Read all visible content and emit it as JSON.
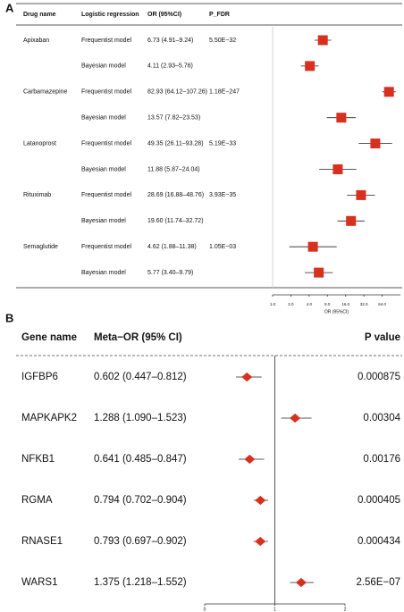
{
  "chart_data": [
    {
      "type": "forest",
      "panel": "A",
      "marker": "square",
      "color": "#d7301f",
      "columns": [
        "Drug name",
        "Logistic regression",
        "OR (95%CI)",
        "P_FDR"
      ],
      "categories": [
        "Apixaban",
        null,
        "Carbamazepine",
        null,
        "Latanoprost",
        null,
        "Rituximab",
        null,
        "Semaglutide",
        null
      ],
      "model": [
        "Frequentist model",
        "Bayesian model",
        "Frequentist model",
        "Bayesian model",
        "Frequentist model",
        "Bayesian model",
        "Frequentist model",
        "Bayesian model",
        "Frequentist model",
        "Bayesian model"
      ],
      "values": [
        6.73,
        4.11,
        82.93,
        13.57,
        49.35,
        11.88,
        28.69,
        19.6,
        4.62,
        5.77
      ],
      "lower": [
        4.91,
        2.93,
        64.12,
        7.82,
        26.11,
        5.87,
        16.88,
        11.74,
        1.88,
        3.4
      ],
      "upper": [
        9.24,
        5.76,
        107.26,
        23.53,
        93.28,
        24.04,
        48.76,
        32.72,
        11.38,
        9.79
      ],
      "value_labels": [
        "6.73 (4.91–9.24)",
        "4.11 (2.93–5.76)",
        "82.93 (64.12–107.26)",
        "13.57 (7.82–23.53)",
        "49.35 (26.11–93.28)",
        "11.88 (5.87–24.04)",
        "28.69 (16.88–48.76)",
        "19.60 (11.74–32.72)",
        "4.62 (1.88–11.38)",
        "5.77 (3.40–9.79)"
      ],
      "p_values": [
        "5.50E−32",
        null,
        "1.18E−247",
        null,
        "5.19E−33",
        null,
        "3.93E−35",
        null,
        "1.05E−03",
        null
      ],
      "log_x": true,
      "xlim": [
        1,
        128
      ],
      "xticks": [
        {
          "value": 1,
          "label": "1.0"
        },
        {
          "value": 2,
          "label": "2.0"
        },
        {
          "value": 4,
          "label": "4.0"
        },
        {
          "value": 8,
          "label": "8.0"
        },
        {
          "value": 16,
          "label": "16.0"
        },
        {
          "value": 32,
          "label": "32.0"
        },
        {
          "value": 64,
          "label": "64.0"
        }
      ],
      "xlabel": "OR (95%CI)",
      "reference": 1
    },
    {
      "type": "forest",
      "panel": "B",
      "marker": "diamond",
      "color": "#d7301f",
      "columns": [
        "Gene name",
        "Meta−OR (95% CI)",
        "P value"
      ],
      "categories": [
        "IGFBP6",
        "MAPKAPK2",
        "NFKB1",
        "RGMA",
        "RNASE1",
        "WARS1"
      ],
      "values": [
        0.602,
        1.288,
        0.641,
        0.794,
        0.793,
        1.375
      ],
      "lower": [
        0.447,
        1.09,
        0.485,
        0.702,
        0.697,
        1.218
      ],
      "upper": [
        0.812,
        1.523,
        0.847,
        0.904,
        0.902,
        1.552
      ],
      "value_labels": [
        "0.602 (0.447–0.812)",
        "1.288 (1.090–1.523)",
        "0.641 (0.485–0.847)",
        "0.794 (0.702–0.904)",
        "0.793 (0.697–0.902)",
        "1.375 (1.218–1.552)"
      ],
      "p_values": [
        "0.000875",
        "0.00304",
        "0.00176",
        "0.000405",
        "0.000434",
        "2.56E−07"
      ],
      "log_x": false,
      "xlim": [
        0,
        2
      ],
      "xticks": [
        0,
        1,
        2
      ],
      "reference": 1
    }
  ]
}
